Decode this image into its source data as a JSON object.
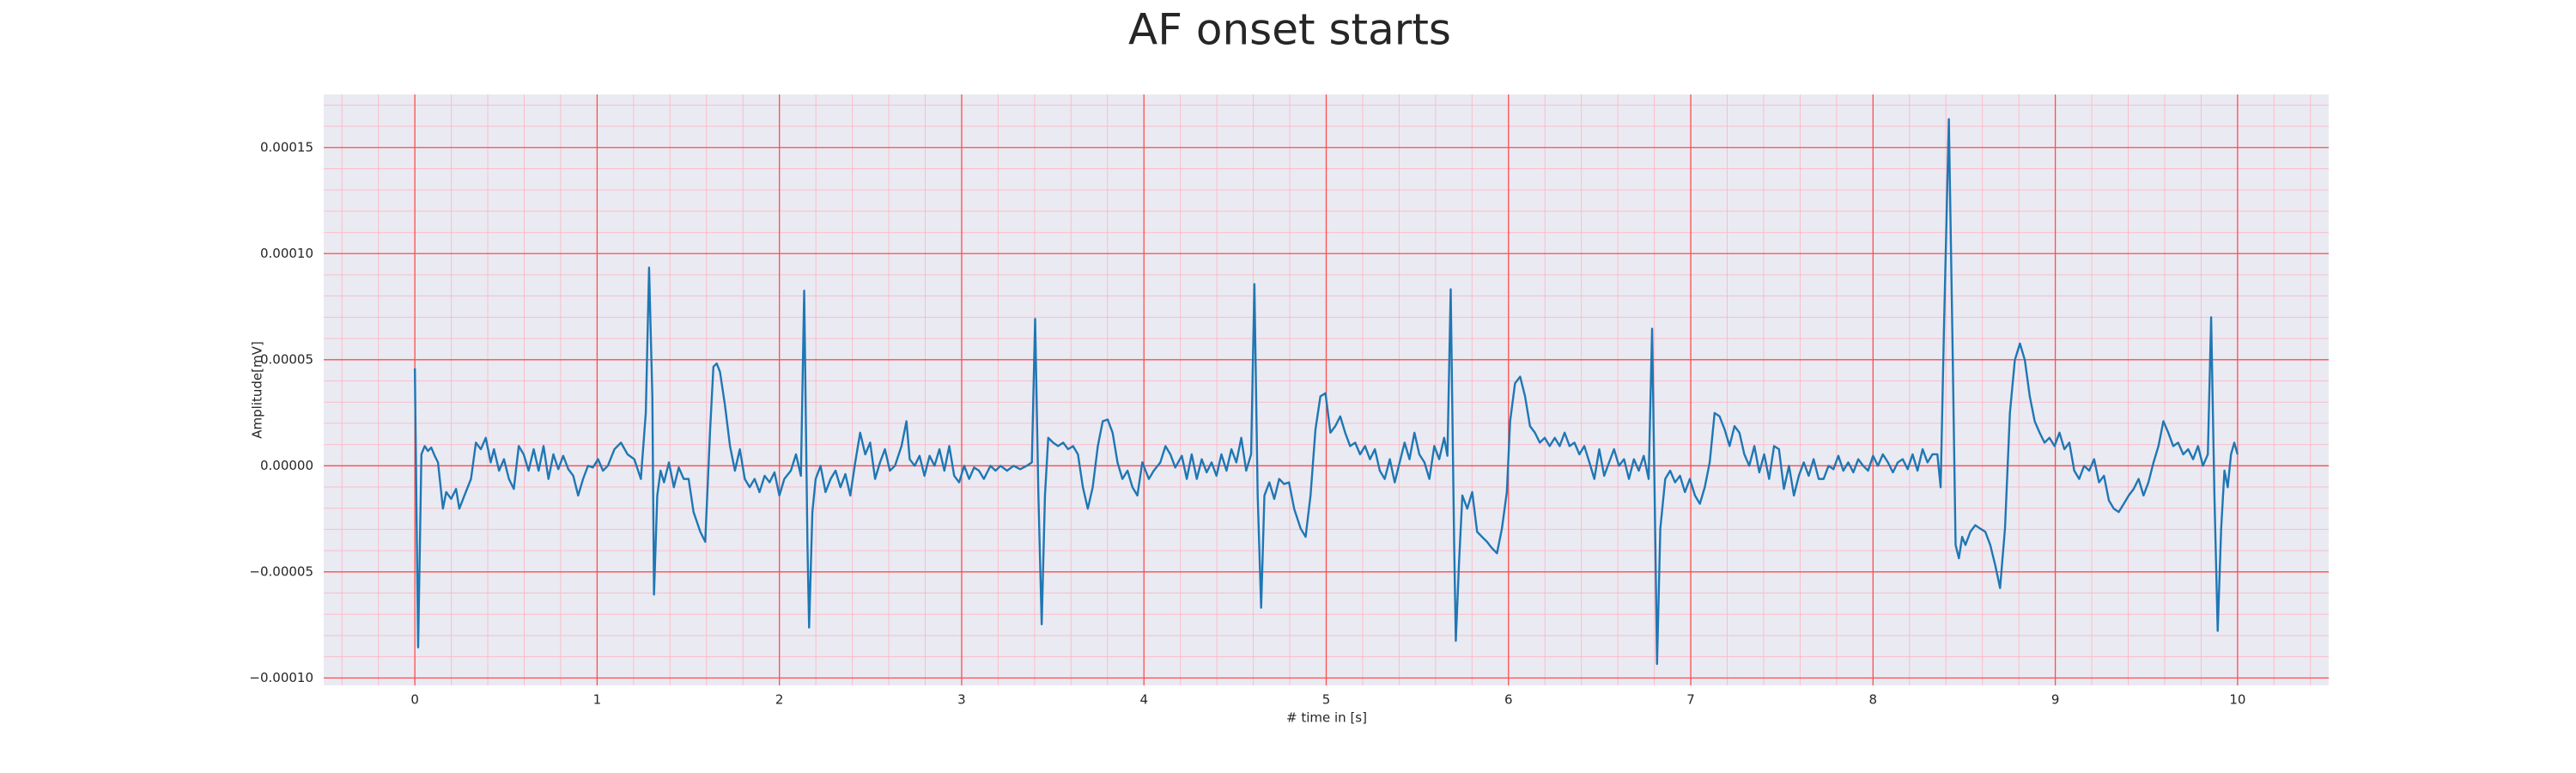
{
  "chart_data": {
    "type": "line",
    "title": "AF onset starts",
    "xlabel": "# time in [s]",
    "ylabel": "Amplitude[mV]",
    "color": "#1f77b4",
    "grid": true,
    "grid_color": "#ff4d4d",
    "minor_grid": true,
    "minor_grid_color": "#ffb3c1",
    "minor_divisions": 5,
    "background": "#eaeaf2",
    "xlim": [
      -0.5,
      10.5
    ],
    "xticks": [
      0,
      1,
      2,
      3,
      4,
      5,
      6,
      7,
      8,
      9,
      10
    ],
    "ylim": [
      -0.0001035,
      0.000175
    ],
    "yticks": [
      {
        "value": -0.0001,
        "label": "−0.00010"
      },
      {
        "value": -5e-05,
        "label": "−0.00005"
      },
      {
        "value": 0,
        "label": "0.00000"
      },
      {
        "value": 5e-05,
        "label": "0.00005"
      },
      {
        "value": 0.0001,
        "label": "0.00010"
      },
      {
        "value": 0.00015,
        "label": "0.00015"
      }
    ],
    "x": [
      0,
      0.018,
      0.036,
      0.054,
      0.072,
      0.09,
      0.109,
      0.127,
      0.154,
      0.172,
      0.199,
      0.226,
      0.244,
      0.272,
      0.308,
      0.335,
      0.362,
      0.389,
      0.416,
      0.434,
      0.462,
      0.489,
      0.516,
      0.543,
      0.57,
      0.597,
      0.624,
      0.652,
      0.679,
      0.706,
      0.733,
      0.76,
      0.787,
      0.814,
      0.842,
      0.869,
      0.896,
      0.923,
      0.95,
      0.977,
      1.005,
      1.032,
      1.059,
      1.095,
      1.131,
      1.167,
      1.204,
      1.24,
      1.267,
      1.285,
      1.303,
      1.312,
      1.33,
      1.348,
      1.367,
      1.394,
      1.421,
      1.448,
      1.475,
      1.502,
      1.529,
      1.566,
      1.593,
      1.62,
      1.638,
      1.656,
      1.674,
      1.701,
      1.729,
      1.756,
      1.783,
      1.81,
      1.837,
      1.864,
      1.891,
      1.919,
      1.946,
      1.973,
      2.0,
      2.027,
      2.063,
      2.091,
      2.118,
      2.136,
      2.154,
      2.163,
      2.181,
      2.199,
      2.226,
      2.253,
      2.281,
      2.308,
      2.335,
      2.362,
      2.389,
      2.416,
      2.443,
      2.471,
      2.498,
      2.525,
      2.552,
      2.579,
      2.606,
      2.634,
      2.67,
      2.697,
      2.715,
      2.742,
      2.769,
      2.796,
      2.824,
      2.851,
      2.878,
      2.905,
      2.932,
      2.959,
      2.986,
      3.014,
      3.041,
      3.068,
      3.095,
      3.122,
      3.158,
      3.186,
      3.213,
      3.249,
      3.285,
      3.321,
      3.357,
      3.385,
      3.403,
      3.421,
      3.439,
      3.457,
      3.475,
      3.502,
      3.529,
      3.557,
      3.584,
      3.611,
      3.638,
      3.665,
      3.692,
      3.719,
      3.747,
      3.774,
      3.801,
      3.828,
      3.855,
      3.882,
      3.91,
      3.937,
      3.964,
      3.991,
      4.027,
      4.054,
      4.09,
      4.118,
      4.145,
      4.172,
      4.208,
      4.235,
      4.262,
      4.29,
      4.317,
      4.344,
      4.371,
      4.398,
      4.425,
      4.453,
      4.48,
      4.507,
      4.534,
      4.561,
      4.588,
      4.606,
      4.624,
      4.643,
      4.661,
      4.688,
      4.715,
      4.742,
      4.769,
      4.796,
      4.824,
      4.86,
      4.887,
      4.914,
      4.941,
      4.968,
      4.996,
      5.023,
      5.05,
      5.077,
      5.104,
      5.131,
      5.159,
      5.186,
      5.213,
      5.24,
      5.267,
      5.294,
      5.321,
      5.349,
      5.376,
      5.403,
      5.43,
      5.457,
      5.484,
      5.511,
      5.539,
      5.566,
      5.593,
      5.62,
      5.647,
      5.665,
      5.683,
      5.702,
      5.711,
      5.729,
      5.747,
      5.774,
      5.801,
      5.828,
      5.855,
      5.882,
      5.91,
      5.937,
      5.964,
      5.991,
      6.009,
      6.036,
      6.064,
      6.091,
      6.118,
      6.145,
      6.172,
      6.199,
      6.226,
      6.254,
      6.281,
      6.308,
      6.335,
      6.362,
      6.389,
      6.416,
      6.444,
      6.471,
      6.498,
      6.525,
      6.552,
      6.579,
      6.606,
      6.634,
      6.661,
      6.688,
      6.715,
      6.742,
      6.769,
      6.788,
      6.806,
      6.815,
      6.833,
      6.86,
      6.887,
      6.914,
      6.941,
      6.968,
      6.995,
      7.023,
      7.05,
      7.077,
      7.104,
      7.131,
      7.158,
      7.186,
      7.213,
      7.24,
      7.267,
      7.294,
      7.321,
      7.349,
      7.376,
      7.403,
      7.43,
      7.457,
      7.484,
      7.511,
      7.539,
      7.566,
      7.593,
      7.62,
      7.647,
      7.674,
      7.702,
      7.729,
      7.756,
      7.783,
      7.81,
      7.837,
      7.864,
      7.892,
      7.919,
      7.946,
      7.973,
      8.0,
      8.027,
      8.054,
      8.082,
      8.109,
      8.136,
      8.163,
      8.19,
      8.217,
      8.244,
      8.272,
      8.299,
      8.326,
      8.353,
      8.371,
      8.389,
      8.416,
      8.435,
      8.453,
      8.471,
      8.489,
      8.507,
      8.534,
      8.561,
      8.588,
      8.616,
      8.643,
      8.67,
      8.697,
      8.724,
      8.751,
      8.778,
      8.806,
      8.833,
      8.86,
      8.887,
      8.914,
      8.941,
      8.968,
      8.996,
      9.023,
      9.05,
      9.077,
      9.104,
      9.131,
      9.158,
      9.186,
      9.213,
      9.24,
      9.267,
      9.294,
      9.321,
      9.348,
      9.376,
      9.403,
      9.43,
      9.457,
      9.484,
      9.511,
      9.539,
      9.566,
      9.593,
      9.62,
      9.647,
      9.674,
      9.702,
      9.729,
      9.756,
      9.783,
      9.81,
      9.837,
      9.855,
      9.873,
      9.891,
      9.91,
      9.928,
      9.946,
      9.964,
      9.982,
      10.0
    ],
    "values": [
      4.59e-05,
      -8.56e-05,
      5.4e-06,
      9.3e-06,
      7e-06,
      8.6e-06,
      4.7e-06,
      1.6e-06,
      -2.02e-05,
      -1.24e-05,
      -1.56e-05,
      -1.09e-05,
      -2.02e-05,
      -1.4e-05,
      -6.2e-06,
      1.09e-05,
      7.8e-06,
      1.32e-05,
      1.6e-06,
      7.8e-06,
      -2.3e-06,
      3.1e-06,
      -6.2e-06,
      -1.09e-05,
      9.3e-06,
      5.4e-06,
      -2.3e-06,
      7.8e-06,
      -2.3e-06,
      9.3e-06,
      -6.2e-06,
      5.4e-06,
      -1.6e-06,
      4.7e-06,
      -1.6e-06,
      -4.7e-06,
      -1.4e-05,
      -6.2e-06,
      0,
      -8e-07,
      3.1e-06,
      -2.3e-06,
      0,
      7.8e-06,
      1.09e-05,
      5.4e-06,
      3.1e-06,
      -6.2e-06,
      2.49e-05,
      9.34e-05,
      3.27e-05,
      -6.07e-05,
      -1.4e-05,
      -2.3e-06,
      -7.8e-06,
      1.6e-06,
      -1.01e-05,
      -8e-07,
      -6.2e-06,
      -6.2e-06,
      -2.18e-05,
      -3.11e-05,
      -3.58e-05,
      1.71e-05,
      4.67e-05,
      4.82e-05,
      4.43e-05,
      2.88e-05,
      9.3e-06,
      -2.3e-06,
      7.8e-06,
      -6.2e-06,
      -1.01e-05,
      -6.2e-06,
      -1.24e-05,
      -4.7e-06,
      -7.8e-06,
      -3.1e-06,
      -1.4e-05,
      -6.2e-06,
      -2.3e-06,
      5.4e-06,
      -4.7e-06,
      8.25e-05,
      -3.73e-05,
      -7.62e-05,
      -2.18e-05,
      -6.2e-06,
      0,
      -1.24e-05,
      -6.2e-06,
      -2.3e-06,
      -1.01e-05,
      -3.9e-06,
      -1.4e-05,
      1.6e-06,
      1.56e-05,
      5.4e-06,
      1.09e-05,
      -6.2e-06,
      1.6e-06,
      7.8e-06,
      -2.3e-06,
      0,
      9.3e-06,
      2.1e-05,
      3.1e-06,
      0,
      4.7e-06,
      -4.7e-06,
      4.7e-06,
      0,
      7.8e-06,
      -2.3e-06,
      9.3e-06,
      -4.7e-06,
      -7.8e-06,
      0,
      -6.2e-06,
      -8e-07,
      -2.3e-06,
      -6.2e-06,
      0,
      -2.3e-06,
      0,
      -2.3e-06,
      0,
      -1.6e-06,
      0,
      1.6e-06,
      6.92e-05,
      -1.4e-05,
      -7.47e-05,
      -1.4e-05,
      1.32e-05,
      1.09e-05,
      9.3e-06,
      1.09e-05,
      7.8e-06,
      9.3e-06,
      5.4e-06,
      -1.01e-05,
      -2.02e-05,
      -1.01e-05,
      9.3e-06,
      2.1e-05,
      2.18e-05,
      1.56e-05,
      1.6e-06,
      -6.2e-06,
      -2.3e-06,
      -1.01e-05,
      -1.4e-05,
      1.6e-06,
      -6.2e-06,
      -2.3e-06,
      1.6e-06,
      9.3e-06,
      5.4e-06,
      -8e-07,
      4.7e-06,
      -6.2e-06,
      5.4e-06,
      -6.2e-06,
      3.1e-06,
      -3.1e-06,
      1.6e-06,
      -4.7e-06,
      5.4e-06,
      -2.3e-06,
      7.8e-06,
      1.6e-06,
      1.32e-05,
      -2.3e-06,
      5.4e-06,
      8.56e-05,
      -1.4e-05,
      -6.69e-05,
      -1.4e-05,
      -7.8e-06,
      -1.56e-05,
      -6.2e-06,
      -8.6e-06,
      -7.8e-06,
      -2.02e-05,
      -2.96e-05,
      -3.35e-05,
      -1.4e-05,
      1.71e-05,
      3.27e-05,
      3.42e-05,
      1.56e-05,
      1.87e-05,
      2.33e-05,
      1.56e-05,
      9.3e-06,
      1.09e-05,
      5.4e-06,
      9.3e-06,
      3.1e-06,
      7.8e-06,
      -2.3e-06,
      -6.2e-06,
      3.1e-06,
      -7.8e-06,
      1.6e-06,
      1.09e-05,
      3.1e-06,
      1.56e-05,
      5.4e-06,
      1.6e-06,
      -6.2e-06,
      9.3e-06,
      3.1e-06,
      1.32e-05,
      4.7e-06,
      8.32e-05,
      -3.73e-05,
      -8.25e-05,
      -4.51e-05,
      -1.4e-05,
      -2.02e-05,
      -1.24e-05,
      -3.11e-05,
      -3.35e-05,
      -3.58e-05,
      -3.89e-05,
      -4.12e-05,
      -2.96e-05,
      -1.24e-05,
      2.1e-05,
      3.89e-05,
      4.2e-05,
      3.27e-05,
      1.87e-05,
      1.56e-05,
      1.09e-05,
      1.32e-05,
      9.3e-06,
      1.32e-05,
      9.3e-06,
      1.56e-05,
      9.3e-06,
      1.09e-05,
      5.4e-06,
      9.3e-06,
      1.6e-06,
      -6.2e-06,
      7.8e-06,
      -4.7e-06,
      1.6e-06,
      7.8e-06,
      0,
      3.1e-06,
      -6.2e-06,
      3.1e-06,
      -2.3e-06,
      4.7e-06,
      -6.2e-06,
      6.46e-05,
      -3.73e-05,
      -9.34e-05,
      -2.96e-05,
      -6.2e-06,
      -2.3e-06,
      -7.8e-06,
      -4.7e-06,
      -1.24e-05,
      -6.2e-06,
      -1.4e-05,
      -1.79e-05,
      -1.01e-05,
      1.6e-06,
      2.49e-05,
      2.33e-05,
      1.71e-05,
      9.3e-06,
      1.87e-05,
      1.56e-05,
      5.4e-06,
      0,
      9.3e-06,
      -3.1e-06,
      5.4e-06,
      -6.2e-06,
      9.3e-06,
      7.8e-06,
      -1.09e-05,
      0,
      -1.4e-05,
      -4.7e-06,
      1.6e-06,
      -4.7e-06,
      3.1e-06,
      -6.2e-06,
      -6.2e-06,
      0,
      -1.6e-06,
      4.7e-06,
      -2.3e-06,
      1.6e-06,
      -3.1e-06,
      3.1e-06,
      0,
      -2.3e-06,
      4.7e-06,
      0,
      5.4e-06,
      1.6e-06,
      -3.1e-06,
      1.6e-06,
      3.1e-06,
      -1.6e-06,
      5.4e-06,
      -2.3e-06,
      7.8e-06,
      1.6e-06,
      5.4e-06,
      5.4e-06,
      -1.01e-05,
      6.38e-05,
      0.0001634,
      6.38e-05,
      -3.73e-05,
      -4.36e-05,
      -3.35e-05,
      -3.73e-05,
      -3.11e-05,
      -2.8e-05,
      -2.96e-05,
      -3.11e-05,
      -3.73e-05,
      -4.67e-05,
      -5.76e-05,
      -2.96e-05,
      2.49e-05,
      4.98e-05,
      5.76e-05,
      4.98e-05,
      3.27e-05,
      2.1e-05,
      1.56e-05,
      1.09e-05,
      1.32e-05,
      9.3e-06,
      1.56e-05,
      7.8e-06,
      1.09e-05,
      -2.3e-06,
      -6.2e-06,
      0,
      -2.3e-06,
      3.1e-06,
      -7.8e-06,
      -4.7e-06,
      -1.63e-05,
      -2.02e-05,
      -2.18e-05,
      -1.79e-05,
      -1.4e-05,
      -1.09e-05,
      -6.2e-06,
      -1.4e-05,
      -7.8e-06,
      1.6e-06,
      9.3e-06,
      2.1e-05,
      1.56e-05,
      9.3e-06,
      1.09e-05,
      5.4e-06,
      7.8e-06,
      3.1e-06,
      9.3e-06,
      0,
      5.4e-06,
      7e-05,
      -1.4e-05,
      -7.78e-05,
      -2.96e-05,
      -2.3e-06,
      -1.01e-05,
      5.4e-06,
      1.09e-05,
      5.4e-06
    ]
  }
}
